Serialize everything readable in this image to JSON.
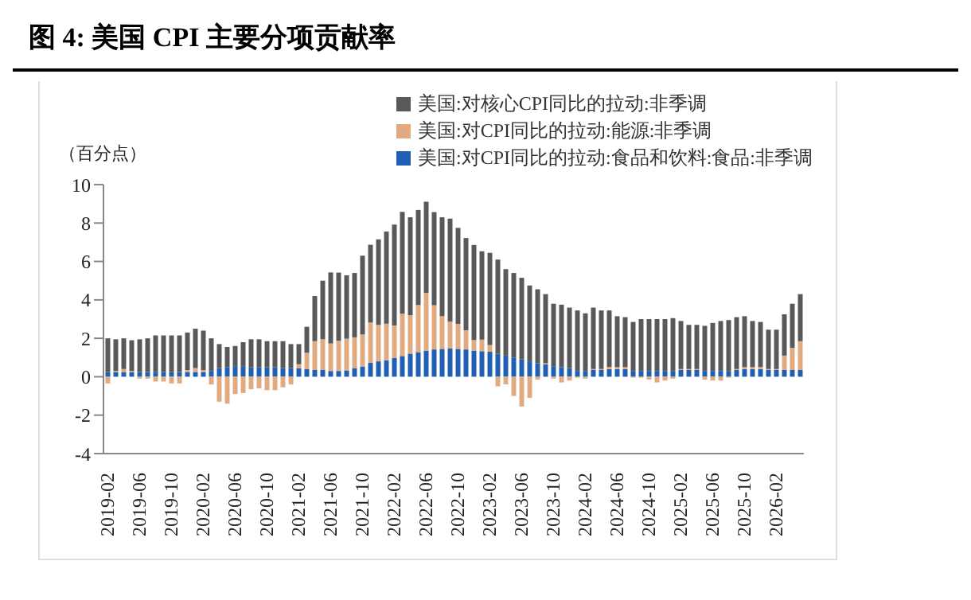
{
  "chart_data": {
    "type": "bar",
    "title": "图 4:  美国 CPI 主要分项贡献率",
    "ylabel": "（百分点）",
    "stacked": true,
    "legend": "top",
    "grid": false,
    "categories": [
      "2019-02",
      null,
      null,
      null,
      "2019-06",
      null,
      null,
      null,
      "2019-10",
      null,
      null,
      null,
      "2020-02",
      null,
      null,
      null,
      "2020-06",
      null,
      null,
      null,
      "2020-10",
      null,
      null,
      null,
      "2021-02",
      null,
      null,
      null,
      "2021-06",
      null,
      null,
      null,
      "2021-10",
      null,
      null,
      null,
      "2022-02",
      null,
      null,
      null,
      "2022-06",
      null,
      null,
      null,
      "2022-10",
      null,
      null,
      null,
      "2023-02",
      null,
      null,
      null,
      "2023-06",
      null,
      null,
      null,
      "2023-10",
      null,
      null,
      null,
      "2024-02",
      null,
      null,
      null,
      "2024-06",
      null,
      null,
      null,
      "2024-10",
      null,
      null,
      null,
      "2025-02",
      null,
      null,
      null,
      "2025-06",
      null,
      null,
      null,
      "2025-10",
      null,
      null,
      null,
      "2026-02",
      null,
      null,
      null
    ],
    "ylim": [
      -4,
      10
    ],
    "yticks": [
      -4,
      -2,
      0,
      2,
      4,
      6,
      8,
      10
    ],
    "series": [
      {
        "name": "美国:对CPI同比的拉动:食品和饮料:食品:非季调",
        "color": "#1f5fb4",
        "values": [
          0.25,
          0.25,
          0.25,
          0.25,
          0.25,
          0.25,
          0.25,
          0.25,
          0.25,
          0.25,
          0.25,
          0.25,
          0.25,
          0.3,
          0.45,
          0.5,
          0.55,
          0.55,
          0.5,
          0.5,
          0.5,
          0.5,
          0.45,
          0.45,
          0.45,
          0.4,
          0.35,
          0.35,
          0.3,
          0.3,
          0.33,
          0.45,
          0.53,
          0.72,
          0.8,
          0.86,
          0.97,
          1.08,
          1.2,
          1.28,
          1.36,
          1.42,
          1.45,
          1.48,
          1.45,
          1.42,
          1.36,
          1.33,
          1.3,
          1.2,
          1.1,
          1.0,
          0.9,
          0.8,
          0.7,
          0.65,
          0.55,
          0.5,
          0.45,
          0.3,
          0.3,
          0.35,
          0.35,
          0.4,
          0.4,
          0.4,
          0.3,
          0.3,
          0.3,
          0.3,
          0.3,
          0.3,
          0.35,
          0.35,
          0.35,
          0.3,
          0.3,
          0.3,
          0.3,
          0.35,
          0.4,
          0.4,
          0.4,
          0.35,
          0.35,
          0.35,
          0.35,
          0.35
        ]
      },
      {
        "name": "美国:对CPI同比的拉动:能源:非季调",
        "color": "#e2aa80",
        "values": [
          -0.35,
          0.05,
          0.15,
          0.05,
          -0.1,
          -0.1,
          -0.25,
          -0.25,
          -0.35,
          -0.35,
          0.1,
          0.2,
          0.1,
          -0.4,
          -1.3,
          -1.4,
          -0.9,
          -0.85,
          -0.65,
          -0.6,
          -0.7,
          -0.7,
          -0.55,
          -0.4,
          0.2,
          0.85,
          1.5,
          1.6,
          1.43,
          1.57,
          1.65,
          1.6,
          1.67,
          2.1,
          1.9,
          1.9,
          1.7,
          2.2,
          2.0,
          2.45,
          3.0,
          2.3,
          1.7,
          1.4,
          1.3,
          1.0,
          0.55,
          0.6,
          0.35,
          -0.5,
          -0.4,
          -1.0,
          -1.55,
          -1.1,
          -0.15,
          0.05,
          -0.1,
          -0.3,
          -0.2,
          -0.05,
          -0.1,
          0.05,
          0.05,
          0.1,
          0.1,
          0.1,
          -0.05,
          -0.05,
          -0.15,
          -0.3,
          -0.2,
          -0.1,
          0.05,
          0.05,
          0.05,
          -0.15,
          -0.2,
          -0.2,
          -0.05,
          0.05,
          0.1,
          0.1,
          0.1,
          0.05,
          0.05,
          0.75,
          1.15,
          1.5
        ]
      },
      {
        "name": "美国:对核心CPI同比的拉动:非季调",
        "color": "#595959",
        "values": [
          1.75,
          1.65,
          1.6,
          1.6,
          1.7,
          1.75,
          1.9,
          1.9,
          1.9,
          1.9,
          1.95,
          2.05,
          2.05,
          1.7,
          1.25,
          1.05,
          1.05,
          1.25,
          1.45,
          1.45,
          1.35,
          1.35,
          1.4,
          1.25,
          1.05,
          1.35,
          2.35,
          3.05,
          3.7,
          3.55,
          3.3,
          3.35,
          4.1,
          4.05,
          4.45,
          4.8,
          5.25,
          5.3,
          5.1,
          4.95,
          4.75,
          4.85,
          5.15,
          5.35,
          5.0,
          4.8,
          4.95,
          4.6,
          4.8,
          4.9,
          4.5,
          4.4,
          4.25,
          3.95,
          3.85,
          3.6,
          3.25,
          3.25,
          3.15,
          3.15,
          3.0,
          3.2,
          3.05,
          2.95,
          2.65,
          2.6,
          2.55,
          2.7,
          2.7,
          2.7,
          2.7,
          2.75,
          2.5,
          2.3,
          2.3,
          2.35,
          2.5,
          2.6,
          2.65,
          2.7,
          2.65,
          2.4,
          2.35,
          2.05,
          2.05,
          2.15,
          2.3,
          2.45
        ]
      }
    ]
  }
}
